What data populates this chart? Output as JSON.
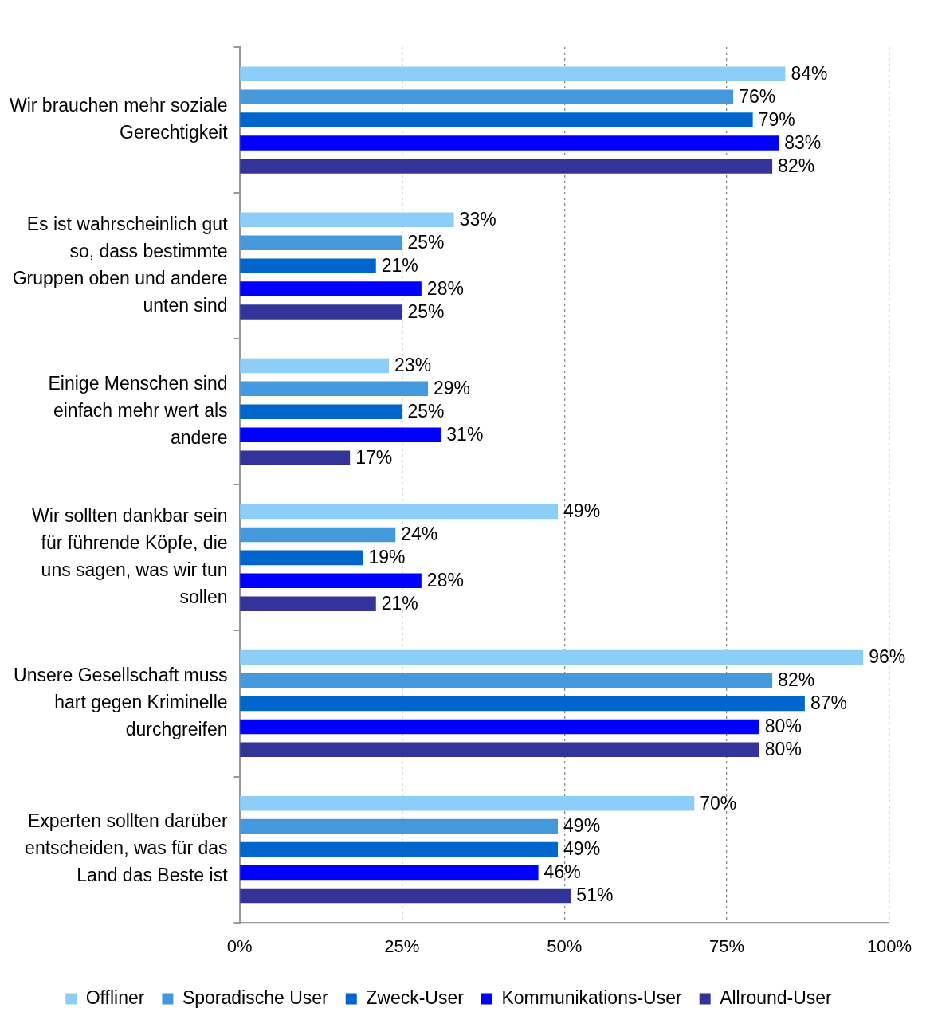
{
  "chart_data": {
    "type": "bar",
    "orientation": "horizontal",
    "categories": [
      "Wir brauchen mehr soziale Gerechtigkeit",
      "Es ist wahrscheinlich gut so, dass bestimmte Gruppen oben und andere unten sind",
      "Einige Menschen sind einfach mehr wert als andere",
      "Wir sollten dankbar sein für führende Köpfe, die uns sagen, was wir tun sollen",
      "Unsere Gesellschaft muss hart gegen Kriminelle durchgreifen",
      "Experten sollten darüber entscheiden, was für das Land das Beste ist"
    ],
    "series": [
      {
        "name": "Offliner",
        "color": "#8ccef7",
        "values": [
          84,
          33,
          23,
          49,
          96,
          70
        ],
        "value_labels": [
          "84%",
          "33%",
          "23%",
          "49%",
          "96%",
          "70%"
        ]
      },
      {
        "name": "Sporadische User",
        "color": "#4499dd",
        "values": [
          76,
          25,
          29,
          24,
          82,
          49
        ],
        "value_labels": [
          "76%",
          "25%",
          "29%",
          "24%",
          "82%",
          "49%"
        ]
      },
      {
        "name": "Zweck-User",
        "color": "#0066cc",
        "values": [
          79,
          21,
          25,
          19,
          87,
          49
        ],
        "value_labels": [
          "79%",
          "21%",
          "25%",
          "19%",
          "87%",
          "49%"
        ]
      },
      {
        "name": "Kommunikations-User",
        "color": "#0000ff",
        "values": [
          83,
          28,
          31,
          28,
          80,
          46
        ],
        "value_labels": [
          "83%",
          "28%",
          "31%",
          "28%",
          "80%",
          "46%"
        ]
      },
      {
        "name": "Allround-User",
        "color": "#333399",
        "values": [
          82,
          25,
          17,
          21,
          80,
          51
        ],
        "value_labels": [
          "82%",
          "25%",
          "17%",
          "21%",
          "80%",
          "51%"
        ]
      }
    ],
    "xlim": [
      0,
      100
    ],
    "xticks": [
      {
        "value": 0,
        "label": "0%"
      },
      {
        "value": 25,
        "label": "25%"
      },
      {
        "value": 50,
        "label": "50%"
      },
      {
        "value": 75,
        "label": "75%"
      },
      {
        "value": 100,
        "label": "100%"
      }
    ],
    "grid": "x",
    "legend": "bottom"
  }
}
